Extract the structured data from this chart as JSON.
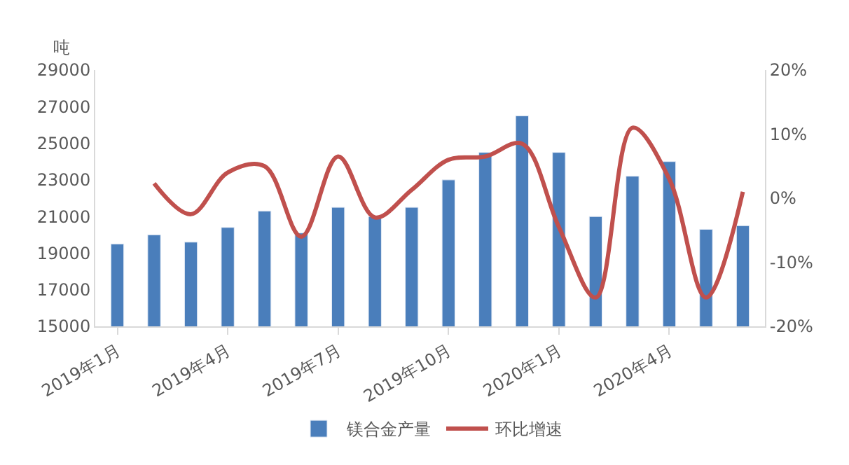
{
  "chart_data": {
    "type": "bar",
    "ylabel": "吨",
    "categories": [
      "2019年1月",
      null,
      null,
      "2019年4月",
      null,
      null,
      "2019年7月",
      null,
      null,
      "2019年10月",
      null,
      null,
      "2020年1月",
      null,
      null,
      "2020年4月",
      null,
      null
    ],
    "series": [
      {
        "name": "镁合金产量",
        "color": "#4a7ebb",
        "values": [
          19500,
          20000,
          19600,
          20400,
          21300,
          20100,
          21500,
          21000,
          21500,
          23000,
          24500,
          26500,
          24500,
          21000,
          23200,
          24000,
          20300,
          20500
        ]
      },
      {
        "name": "环比增速",
        "type": "line",
        "axis": "y2",
        "color": "#c0504d",
        "values": [
          null,
          2.3,
          -2.5,
          4,
          5,
          -6,
          6.5,
          -3,
          1.3,
          6,
          6.5,
          8.5,
          -4.5,
          -15.5,
          11,
          3,
          -15.5,
          1
        ]
      }
    ],
    "ylim": [
      15000,
      29000
    ],
    "yticks": [
      15000,
      17000,
      19000,
      21000,
      23000,
      25000,
      27000,
      29000
    ],
    "y2lim": [
      -20,
      20
    ],
    "y2ticks": [
      {
        "value": -20,
        "label": "-20%"
      },
      {
        "value": -10,
        "label": "-10%"
      },
      {
        "value": 0,
        "label": "0%"
      },
      {
        "value": 10,
        "label": "10%"
      },
      {
        "value": 20,
        "label": "20%"
      }
    ],
    "legend": "bottom"
  }
}
